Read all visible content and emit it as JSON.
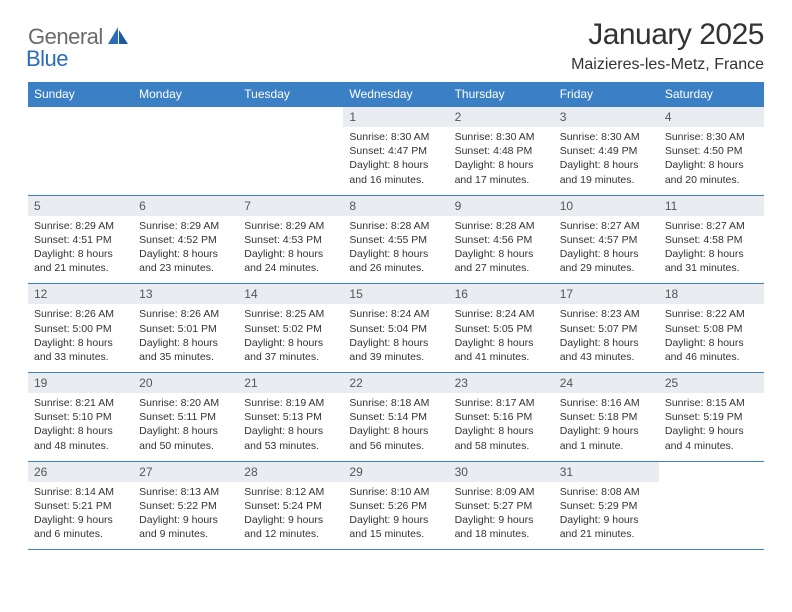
{
  "brand": {
    "part1": "General",
    "part2": "Blue"
  },
  "title": "January 2025",
  "location": "Maizieres-les-Metz, France",
  "colors": {
    "header_bg": "#3b7fc4",
    "header_text": "#ffffff",
    "daynum_bg": "#e9edf1",
    "rule": "#3b7fc4",
    "body_text": "#333333",
    "logo_gray": "#6b6b6b",
    "logo_blue": "#2a6db8"
  },
  "weekdays": [
    "Sunday",
    "Monday",
    "Tuesday",
    "Wednesday",
    "Thursday",
    "Friday",
    "Saturday"
  ],
  "weeks": [
    [
      {
        "n": "",
        "sunrise": "",
        "sunset": "",
        "daylight": ""
      },
      {
        "n": "",
        "sunrise": "",
        "sunset": "",
        "daylight": ""
      },
      {
        "n": "",
        "sunrise": "",
        "sunset": "",
        "daylight": ""
      },
      {
        "n": "1",
        "sunrise": "Sunrise: 8:30 AM",
        "sunset": "Sunset: 4:47 PM",
        "daylight": "Daylight: 8 hours and 16 minutes."
      },
      {
        "n": "2",
        "sunrise": "Sunrise: 8:30 AM",
        "sunset": "Sunset: 4:48 PM",
        "daylight": "Daylight: 8 hours and 17 minutes."
      },
      {
        "n": "3",
        "sunrise": "Sunrise: 8:30 AM",
        "sunset": "Sunset: 4:49 PM",
        "daylight": "Daylight: 8 hours and 19 minutes."
      },
      {
        "n": "4",
        "sunrise": "Sunrise: 8:30 AM",
        "sunset": "Sunset: 4:50 PM",
        "daylight": "Daylight: 8 hours and 20 minutes."
      }
    ],
    [
      {
        "n": "5",
        "sunrise": "Sunrise: 8:29 AM",
        "sunset": "Sunset: 4:51 PM",
        "daylight": "Daylight: 8 hours and 21 minutes."
      },
      {
        "n": "6",
        "sunrise": "Sunrise: 8:29 AM",
        "sunset": "Sunset: 4:52 PM",
        "daylight": "Daylight: 8 hours and 23 minutes."
      },
      {
        "n": "7",
        "sunrise": "Sunrise: 8:29 AM",
        "sunset": "Sunset: 4:53 PM",
        "daylight": "Daylight: 8 hours and 24 minutes."
      },
      {
        "n": "8",
        "sunrise": "Sunrise: 8:28 AM",
        "sunset": "Sunset: 4:55 PM",
        "daylight": "Daylight: 8 hours and 26 minutes."
      },
      {
        "n": "9",
        "sunrise": "Sunrise: 8:28 AM",
        "sunset": "Sunset: 4:56 PM",
        "daylight": "Daylight: 8 hours and 27 minutes."
      },
      {
        "n": "10",
        "sunrise": "Sunrise: 8:27 AM",
        "sunset": "Sunset: 4:57 PM",
        "daylight": "Daylight: 8 hours and 29 minutes."
      },
      {
        "n": "11",
        "sunrise": "Sunrise: 8:27 AM",
        "sunset": "Sunset: 4:58 PM",
        "daylight": "Daylight: 8 hours and 31 minutes."
      }
    ],
    [
      {
        "n": "12",
        "sunrise": "Sunrise: 8:26 AM",
        "sunset": "Sunset: 5:00 PM",
        "daylight": "Daylight: 8 hours and 33 minutes."
      },
      {
        "n": "13",
        "sunrise": "Sunrise: 8:26 AM",
        "sunset": "Sunset: 5:01 PM",
        "daylight": "Daylight: 8 hours and 35 minutes."
      },
      {
        "n": "14",
        "sunrise": "Sunrise: 8:25 AM",
        "sunset": "Sunset: 5:02 PM",
        "daylight": "Daylight: 8 hours and 37 minutes."
      },
      {
        "n": "15",
        "sunrise": "Sunrise: 8:24 AM",
        "sunset": "Sunset: 5:04 PM",
        "daylight": "Daylight: 8 hours and 39 minutes."
      },
      {
        "n": "16",
        "sunrise": "Sunrise: 8:24 AM",
        "sunset": "Sunset: 5:05 PM",
        "daylight": "Daylight: 8 hours and 41 minutes."
      },
      {
        "n": "17",
        "sunrise": "Sunrise: 8:23 AM",
        "sunset": "Sunset: 5:07 PM",
        "daylight": "Daylight: 8 hours and 43 minutes."
      },
      {
        "n": "18",
        "sunrise": "Sunrise: 8:22 AM",
        "sunset": "Sunset: 5:08 PM",
        "daylight": "Daylight: 8 hours and 46 minutes."
      }
    ],
    [
      {
        "n": "19",
        "sunrise": "Sunrise: 8:21 AM",
        "sunset": "Sunset: 5:10 PM",
        "daylight": "Daylight: 8 hours and 48 minutes."
      },
      {
        "n": "20",
        "sunrise": "Sunrise: 8:20 AM",
        "sunset": "Sunset: 5:11 PM",
        "daylight": "Daylight: 8 hours and 50 minutes."
      },
      {
        "n": "21",
        "sunrise": "Sunrise: 8:19 AM",
        "sunset": "Sunset: 5:13 PM",
        "daylight": "Daylight: 8 hours and 53 minutes."
      },
      {
        "n": "22",
        "sunrise": "Sunrise: 8:18 AM",
        "sunset": "Sunset: 5:14 PM",
        "daylight": "Daylight: 8 hours and 56 minutes."
      },
      {
        "n": "23",
        "sunrise": "Sunrise: 8:17 AM",
        "sunset": "Sunset: 5:16 PM",
        "daylight": "Daylight: 8 hours and 58 minutes."
      },
      {
        "n": "24",
        "sunrise": "Sunrise: 8:16 AM",
        "sunset": "Sunset: 5:18 PM",
        "daylight": "Daylight: 9 hours and 1 minute."
      },
      {
        "n": "25",
        "sunrise": "Sunrise: 8:15 AM",
        "sunset": "Sunset: 5:19 PM",
        "daylight": "Daylight: 9 hours and 4 minutes."
      }
    ],
    [
      {
        "n": "26",
        "sunrise": "Sunrise: 8:14 AM",
        "sunset": "Sunset: 5:21 PM",
        "daylight": "Daylight: 9 hours and 6 minutes."
      },
      {
        "n": "27",
        "sunrise": "Sunrise: 8:13 AM",
        "sunset": "Sunset: 5:22 PM",
        "daylight": "Daylight: 9 hours and 9 minutes."
      },
      {
        "n": "28",
        "sunrise": "Sunrise: 8:12 AM",
        "sunset": "Sunset: 5:24 PM",
        "daylight": "Daylight: 9 hours and 12 minutes."
      },
      {
        "n": "29",
        "sunrise": "Sunrise: 8:10 AM",
        "sunset": "Sunset: 5:26 PM",
        "daylight": "Daylight: 9 hours and 15 minutes."
      },
      {
        "n": "30",
        "sunrise": "Sunrise: 8:09 AM",
        "sunset": "Sunset: 5:27 PM",
        "daylight": "Daylight: 9 hours and 18 minutes."
      },
      {
        "n": "31",
        "sunrise": "Sunrise: 8:08 AM",
        "sunset": "Sunset: 5:29 PM",
        "daylight": "Daylight: 9 hours and 21 minutes."
      },
      {
        "n": "",
        "sunrise": "",
        "sunset": "",
        "daylight": ""
      }
    ]
  ]
}
